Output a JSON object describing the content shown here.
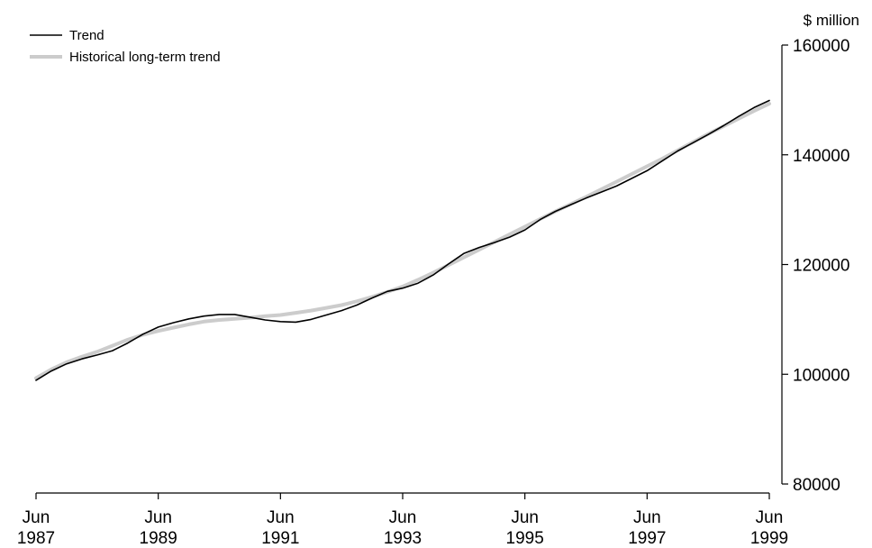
{
  "chart_data": {
    "type": "line",
    "x": [
      "Jun 1987",
      "Sep 1987",
      "Dec 1987",
      "Mar 1988",
      "Jun 1988",
      "Sep 1988",
      "Dec 1988",
      "Mar 1989",
      "Jun 1989",
      "Sep 1989",
      "Dec 1989",
      "Mar 1990",
      "Jun 1990",
      "Sep 1990",
      "Dec 1990",
      "Mar 1991",
      "Jun 1991",
      "Sep 1991",
      "Dec 1991",
      "Mar 1992",
      "Jun 1992",
      "Sep 1992",
      "Dec 1992",
      "Mar 1993",
      "Jun 1993",
      "Sep 1993",
      "Dec 1993",
      "Mar 1994",
      "Jun 1994",
      "Sep 1994",
      "Dec 1994",
      "Mar 1995",
      "Jun 1995",
      "Sep 1995",
      "Dec 1995",
      "Mar 1996",
      "Jun 1996",
      "Sep 1996",
      "Dec 1996",
      "Mar 1997",
      "Jun 1997",
      "Sep 1997",
      "Dec 1997",
      "Mar 1998",
      "Jun 1998",
      "Sep 1998",
      "Dec 1998",
      "Mar 1999",
      "Jun 1999"
    ],
    "series": [
      {
        "name": "Trend",
        "color": "#000000",
        "values": [
          98900,
          100600,
          101900,
          102800,
          103500,
          104300,
          105700,
          107300,
          108600,
          109400,
          110100,
          110600,
          110900,
          110900,
          110400,
          109900,
          109600,
          109500,
          110000,
          110800,
          111600,
          112600,
          113900,
          115100,
          115700,
          116600,
          118100,
          120100,
          122000,
          123100,
          124000,
          125000,
          126300,
          128200,
          129700,
          130900,
          132100,
          133200,
          134300,
          135700,
          137100,
          138900,
          140700,
          142200,
          143700,
          145300,
          147000,
          148600,
          149900
        ]
      },
      {
        "name": "Historical long-term trend",
        "color": "#cccccc",
        "values": [
          99300,
          100900,
          102200,
          103200,
          104100,
          105200,
          106300,
          107200,
          107900,
          108500,
          109100,
          109600,
          109900,
          110100,
          110300,
          110600,
          110800,
          111200,
          111600,
          112100,
          112600,
          113300,
          114100,
          115000,
          116000,
          117200,
          118500,
          119900,
          121300,
          122700,
          124100,
          125500,
          126900,
          128300,
          129700,
          131000,
          132300,
          133700,
          135100,
          136500,
          137900,
          139300,
          140800,
          142300,
          143800,
          145200,
          146600,
          148000,
          149300
        ]
      }
    ],
    "xtick_labels": [
      [
        "Jun",
        "1987"
      ],
      [
        "Jun",
        "1989"
      ],
      [
        "Jun",
        "1991"
      ],
      [
        "Jun",
        "1993"
      ],
      [
        "Jun",
        "1995"
      ],
      [
        "Jun",
        "1997"
      ],
      [
        "Jun",
        "1999"
      ]
    ],
    "yticks": [
      80000,
      100000,
      120000,
      140000,
      160000
    ],
    "ylim": [
      80000,
      160000
    ],
    "ylabel": "$ million",
    "xlabel": "",
    "title": "",
    "legend_position": "top-left",
    "grid": false
  }
}
